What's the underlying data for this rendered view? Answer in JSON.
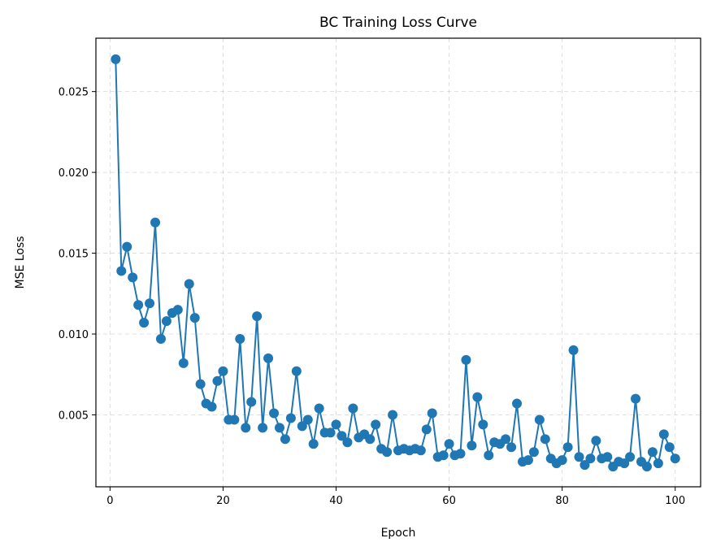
{
  "chart_data": {
    "type": "line",
    "title": "BC Training Loss Curve",
    "xlabel": "Epoch",
    "ylabel": "MSE Loss",
    "xlim": [
      -2.5,
      104.5
    ],
    "ylim": [
      0.00055,
      0.0283
    ],
    "xticks": [
      0,
      20,
      40,
      60,
      80,
      100
    ],
    "yticks": [
      0.005,
      0.01,
      0.015,
      0.02,
      0.025
    ],
    "ytick_labels": [
      "0.005",
      "0.010",
      "0.015",
      "0.020",
      "0.025"
    ],
    "grid": true,
    "grid_style": "dashed",
    "color": "#1f77b4",
    "markers": true,
    "series": [
      {
        "x": [
          1,
          2,
          3,
          4,
          5,
          6,
          7,
          8,
          9,
          10,
          11,
          12,
          13,
          14,
          15,
          16,
          17,
          18,
          19,
          20,
          21,
          22,
          23,
          24,
          25,
          26,
          27,
          28,
          29,
          30,
          31,
          32,
          33,
          34,
          35,
          36,
          37,
          38,
          39,
          40,
          41,
          42,
          43,
          44,
          45,
          46,
          47,
          48,
          49,
          50,
          51,
          52,
          53,
          54,
          55,
          56,
          57,
          58,
          59,
          60,
          61,
          62,
          63,
          64,
          65,
          66,
          67,
          68,
          69,
          70,
          71,
          72,
          73,
          74,
          75,
          76,
          77,
          78,
          79,
          80,
          81,
          82,
          83,
          84,
          85,
          86,
          87,
          88,
          89,
          90,
          91,
          92,
          93,
          94,
          95,
          96,
          97,
          98,
          99,
          100
        ],
        "values": [
          0.027,
          0.0139,
          0.0154,
          0.0135,
          0.0118,
          0.0107,
          0.0119,
          0.0169,
          0.0097,
          0.0108,
          0.0113,
          0.0115,
          0.0082,
          0.0131,
          0.011,
          0.0069,
          0.0057,
          0.0055,
          0.0071,
          0.0077,
          0.0047,
          0.0047,
          0.0097,
          0.0042,
          0.0058,
          0.0111,
          0.0042,
          0.0085,
          0.0051,
          0.0042,
          0.0035,
          0.0048,
          0.0077,
          0.0043,
          0.0047,
          0.0032,
          0.0054,
          0.0039,
          0.0039,
          0.0044,
          0.0037,
          0.0033,
          0.0054,
          0.0036,
          0.0038,
          0.0035,
          0.0044,
          0.0029,
          0.0027,
          0.005,
          0.0028,
          0.0029,
          0.0028,
          0.0029,
          0.0028,
          0.0041,
          0.0051,
          0.0024,
          0.0025,
          0.0032,
          0.0025,
          0.0026,
          0.0084,
          0.0031,
          0.0061,
          0.0044,
          0.0025,
          0.0033,
          0.0032,
          0.0035,
          0.003,
          0.0057,
          0.0021,
          0.0022,
          0.0027,
          0.0047,
          0.0035,
          0.0023,
          0.002,
          0.0022,
          0.003,
          0.009,
          0.0024,
          0.0019,
          0.0023,
          0.0034,
          0.0023,
          0.0024,
          0.0018,
          0.0021,
          0.002,
          0.0024,
          0.006,
          0.0021,
          0.0018,
          0.0027,
          0.002,
          0.0038,
          0.003,
          0.0023
        ]
      }
    ]
  }
}
